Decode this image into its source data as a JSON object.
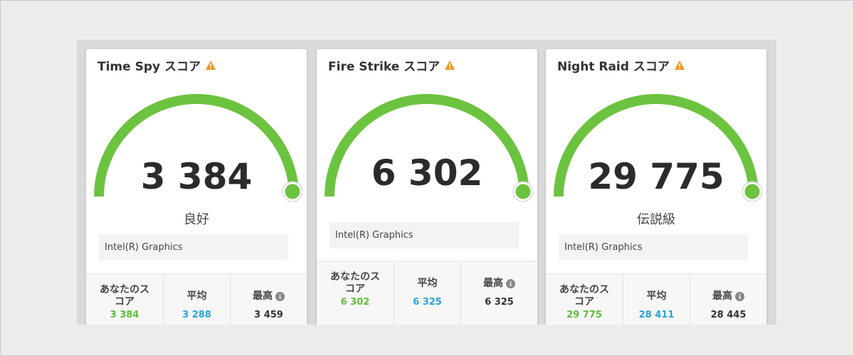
{
  "cards": [
    {
      "title": "Time Spy スコア",
      "score": "3 384",
      "rating": "良好",
      "gpu": "Intel(R) Graphics",
      "stats": [
        {
          "label": "あなたのスコア",
          "value": "3 384"
        },
        {
          "label": "平均",
          "value": "3 288"
        },
        {
          "label": "最高",
          "value": "3 459"
        }
      ]
    },
    {
      "title": "Fire Strike スコア",
      "score": "6 302",
      "gpu": "Intel(R) Graphics",
      "stats": [
        {
          "label": "あなたのスコア",
          "value": "6 302"
        },
        {
          "label": "平均",
          "value": "6 325"
        },
        {
          "label": "最高",
          "value": "6 325"
        }
      ]
    },
    {
      "title": "Night Raid スコア",
      "score": "29 775",
      "rating": "伝説級",
      "gpu": "Intel(R) Graphics",
      "stats": [
        {
          "label": "あなたのスコア",
          "value": "29 775"
        },
        {
          "label": "平均",
          "value": "28 411"
        },
        {
          "label": "最高",
          "value": "28 445"
        }
      ]
    }
  ]
}
